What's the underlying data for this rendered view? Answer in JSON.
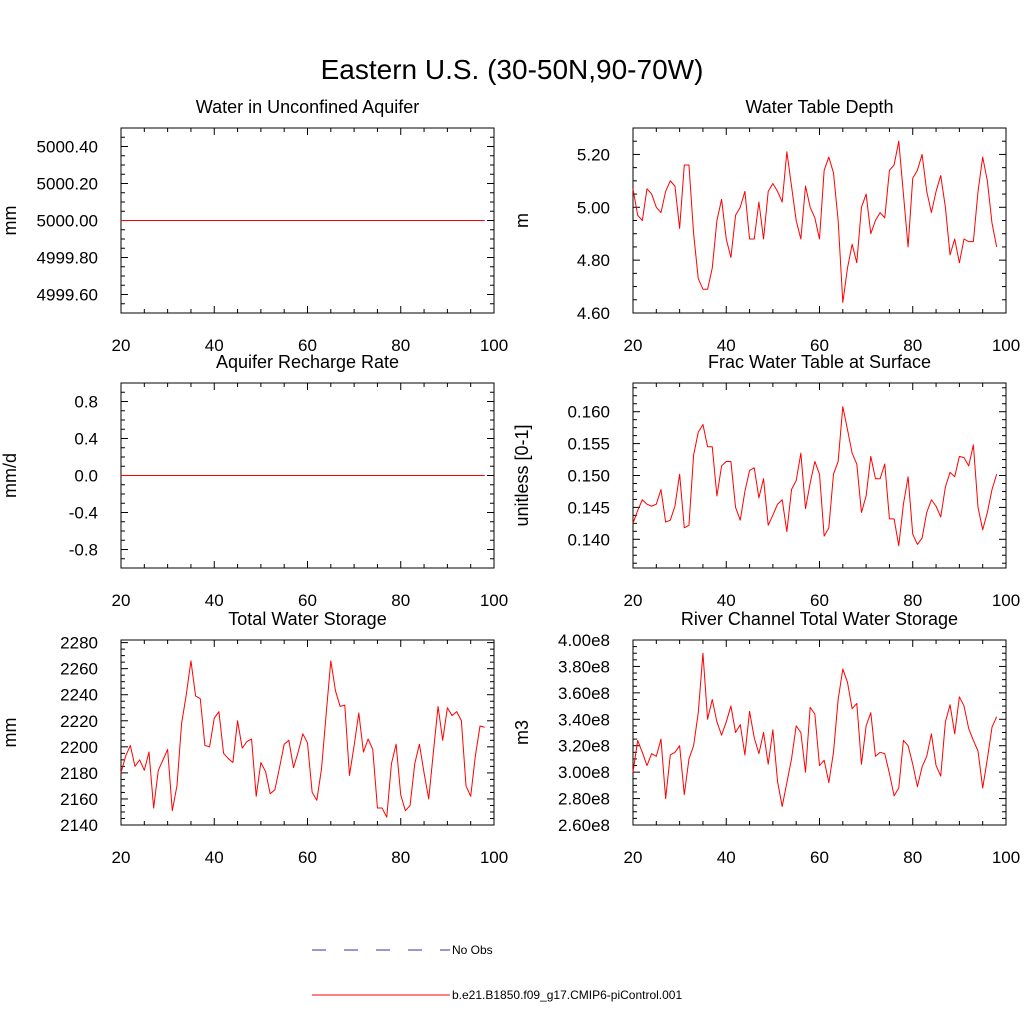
{
  "figure_title": "Eastern U.S. (30-50N,90-70W)",
  "colors": {
    "model": "#ff0000",
    "obs": "#3333aa",
    "axis": "#000000"
  },
  "legend": {
    "obs_label": "No Obs",
    "model_label": "b.e21.B1850.f09_g17.CMIP6-piControl.001"
  },
  "chart_data": [
    {
      "type": "line",
      "title": "Water in Unconfined Aquifer",
      "xlabel": "",
      "ylabel": "mm",
      "xlim": [
        20,
        100
      ],
      "ylim": [
        4999.5,
        5000.5
      ],
      "x_ticks": [
        20,
        40,
        60,
        80,
        100
      ],
      "x_tick_labels": [
        "20",
        "40",
        "60",
        "80",
        "100"
      ],
      "y_ticks": [
        4999.6,
        4999.8,
        5000.0,
        5000.2,
        5000.4
      ],
      "y_tick_labels": [
        "4999.60",
        "4999.80",
        "5000.00",
        "5000.20",
        "5000.40"
      ],
      "series": [
        {
          "name": "b.e21.B1850.f09_g17.CMIP6-piControl.001",
          "x_start": 20,
          "x_step": 2,
          "values": [
            5000,
            5000,
            5000,
            5000,
            5000,
            5000,
            5000,
            5000,
            5000,
            5000,
            5000,
            5000,
            5000,
            5000,
            5000,
            5000,
            5000,
            5000,
            5000,
            5000,
            5000,
            5000,
            5000,
            5000,
            5000,
            5000,
            5000,
            5000,
            5000,
            5000,
            5000,
            5000,
            5000,
            5000,
            5000,
            5000,
            5000,
            5000,
            5000,
            5000
          ]
        }
      ]
    },
    {
      "type": "line",
      "title": "Water Table Depth",
      "xlabel": "",
      "ylabel": "m",
      "xlim": [
        20,
        100
      ],
      "ylim": [
        4.6,
        5.3
      ],
      "x_ticks": [
        20,
        40,
        60,
        80,
        100
      ],
      "x_tick_labels": [
        "20",
        "40",
        "60",
        "80",
        "100"
      ],
      "y_ticks": [
        4.6,
        4.8,
        5.0,
        5.2
      ],
      "y_tick_labels": [
        "4.60",
        "4.80",
        "5.00",
        "5.20"
      ],
      "series": [
        {
          "name": "b.e21.B1850.f09_g17.CMIP6-piControl.001",
          "x_start": 20,
          "x_step": 1,
          "values": [
            5.07,
            4.97,
            4.95,
            5.07,
            5.05,
            5.0,
            4.98,
            5.06,
            5.1,
            5.08,
            4.92,
            5.16,
            5.16,
            4.9,
            4.73,
            4.69,
            4.69,
            4.77,
            4.95,
            5.03,
            4.88,
            4.81,
            4.97,
            5.0,
            5.06,
            4.88,
            4.88,
            5.02,
            4.88,
            5.06,
            5.09,
            5.06,
            5.02,
            5.21,
            5.08,
            4.95,
            4.88,
            5.08,
            5.0,
            4.96,
            4.88,
            5.14,
            5.19,
            5.13,
            4.95,
            4.64,
            4.77,
            4.86,
            4.79,
            5.0,
            5.05,
            4.9,
            4.95,
            4.98,
            4.96,
            5.14,
            5.16,
            5.25,
            5.05,
            4.85,
            5.11,
            5.14,
            5.2,
            5.06,
            4.98,
            5.06,
            5.12,
            5.0,
            4.82,
            4.88,
            4.79,
            4.88,
            4.87,
            4.87,
            5.06,
            5.19,
            5.1,
            4.94,
            4.85
          ]
        }
      ]
    },
    {
      "type": "line",
      "title": "Aquifer Recharge Rate",
      "xlabel": "",
      "ylabel": "mm/d",
      "xlim": [
        20,
        100
      ],
      "ylim": [
        -1.0,
        1.0
      ],
      "x_ticks": [
        20,
        40,
        60,
        80,
        100
      ],
      "x_tick_labels": [
        "20",
        "40",
        "60",
        "80",
        "100"
      ],
      "y_ticks": [
        -0.8,
        -0.4,
        0.0,
        0.4,
        0.8
      ],
      "y_tick_labels": [
        "-0.8",
        "-0.4",
        "0.0",
        "0.4",
        "0.8"
      ],
      "series": [
        {
          "name": "b.e21.B1850.f09_g17.CMIP6-piControl.001",
          "x_start": 20,
          "x_step": 2,
          "values": [
            0,
            0,
            0,
            0,
            0,
            0,
            0,
            0,
            0,
            0,
            0,
            0,
            0,
            0,
            0,
            0,
            0,
            0,
            0,
            0,
            0,
            0,
            0,
            0,
            0,
            0,
            0,
            0,
            0,
            0,
            0,
            0,
            0,
            0,
            0,
            0,
            0,
            0,
            0,
            0
          ]
        }
      ]
    },
    {
      "type": "line",
      "title": "Frac Water Table at Surface",
      "xlabel": "",
      "ylabel": "unitless [0-1]",
      "xlim": [
        20,
        100
      ],
      "ylim": [
        0.1355,
        0.1645
      ],
      "x_ticks": [
        20,
        40,
        60,
        80,
        100
      ],
      "x_tick_labels": [
        "20",
        "40",
        "60",
        "80",
        "100"
      ],
      "y_ticks": [
        0.14,
        0.145,
        0.15,
        0.155,
        0.16
      ],
      "y_tick_labels": [
        "0.140",
        "0.145",
        "0.150",
        "0.155",
        "0.160"
      ],
      "series": [
        {
          "name": "b.e21.B1850.f09_g17.CMIP6-piControl.001",
          "x_start": 20,
          "x_step": 1,
          "values": [
            0.1425,
            0.1445,
            0.1462,
            0.1455,
            0.1452,
            0.1455,
            0.1478,
            0.1427,
            0.143,
            0.1452,
            0.1502,
            0.1418,
            0.1422,
            0.1532,
            0.1568,
            0.158,
            0.1545,
            0.1545,
            0.1468,
            0.1515,
            0.1522,
            0.1522,
            0.145,
            0.143,
            0.1475,
            0.1508,
            0.1512,
            0.1465,
            0.1495,
            0.1422,
            0.1438,
            0.1455,
            0.1462,
            0.1412,
            0.1478,
            0.1492,
            0.1535,
            0.1448,
            0.1488,
            0.1522,
            0.1502,
            0.1405,
            0.1418,
            0.1502,
            0.1522,
            0.1608,
            0.1572,
            0.1535,
            0.1518,
            0.1442,
            0.1468,
            0.153,
            0.1495,
            0.1495,
            0.1518,
            0.1432,
            0.1432,
            0.139,
            0.1455,
            0.1498,
            0.1408,
            0.1392,
            0.1402,
            0.1442,
            0.1462,
            0.1452,
            0.1435,
            0.1482,
            0.1505,
            0.1498,
            0.153,
            0.1528,
            0.1515,
            0.1548,
            0.145,
            0.1415,
            0.1442,
            0.1478,
            0.1502
          ]
        }
      ]
    },
    {
      "type": "line",
      "title": "Total Water Storage",
      "xlabel": "",
      "ylabel": "mm",
      "xlim": [
        20,
        100
      ],
      "ylim": [
        2140,
        2282
      ],
      "x_ticks": [
        20,
        40,
        60,
        80,
        100
      ],
      "x_tick_labels": [
        "20",
        "40",
        "60",
        "80",
        "100"
      ],
      "y_ticks": [
        2140,
        2160,
        2180,
        2200,
        2220,
        2240,
        2260,
        2280
      ],
      "y_tick_labels": [
        "2140",
        "2160",
        "2180",
        "2200",
        "2220",
        "2240",
        "2260",
        "2280"
      ],
      "series": [
        {
          "name": "b.e21.B1850.f09_g17.CMIP6-piControl.001",
          "x_start": 20,
          "x_step": 1,
          "values": [
            2180,
            2193,
            2201,
            2185,
            2190,
            2182,
            2196,
            2153,
            2182,
            2190,
            2198,
            2151,
            2170,
            2218,
            2240,
            2266,
            2239,
            2237,
            2201,
            2200,
            2222,
            2227,
            2195,
            2191,
            2188,
            2220,
            2199,
            2204,
            2206,
            2162,
            2188,
            2181,
            2164,
            2167,
            2184,
            2202,
            2205,
            2184,
            2196,
            2210,
            2203,
            2165,
            2159,
            2183,
            2225,
            2266,
            2243,
            2231,
            2232,
            2178,
            2201,
            2226,
            2196,
            2206,
            2198,
            2153,
            2153,
            2146,
            2187,
            2202,
            2163,
            2151,
            2155,
            2187,
            2202,
            2180,
            2160,
            2196,
            2231,
            2205,
            2230,
            2224,
            2227,
            2220,
            2170,
            2162,
            2193,
            2216,
            2215
          ]
        }
      ]
    },
    {
      "type": "line",
      "title": "River Channel Total Water Storage",
      "xlabel": "",
      "ylabel": "m3",
      "xlim": [
        20,
        100
      ],
      "ylim": [
        260000000.0,
        400000000.0
      ],
      "x_ticks": [
        20,
        40,
        60,
        80,
        100
      ],
      "x_tick_labels": [
        "20",
        "40",
        "60",
        "80",
        "100"
      ],
      "y_ticks": [
        260000000.0,
        280000000.0,
        300000000.0,
        320000000.0,
        340000000.0,
        360000000.0,
        380000000.0,
        400000000.0
      ],
      "y_tick_labels": [
        "2.60e8",
        "2.80e8",
        "3.00e8",
        "3.20e8",
        "3.40e8",
        "3.60e8",
        "3.80e8",
        "4.00e8"
      ],
      "series": [
        {
          "name": "b.e21.B1850.f09_g17.CMIP6-piControl.001",
          "x_start": 20,
          "x_step": 1,
          "values": [
            300000000.0,
            324000000.0,
            315000000.0,
            305000000.0,
            314000000.0,
            312000000.0,
            325000000.0,
            280000000.0,
            313000000.0,
            315000000.0,
            320000000.0,
            283000000.0,
            310000000.0,
            320000000.0,
            345000000.0,
            390000000.0,
            340000000.0,
            355000000.0,
            338000000.0,
            328000000.0,
            338000000.0,
            350000000.0,
            330000000.0,
            336000000.0,
            313000000.0,
            346000000.0,
            326000000.0,
            314000000.0,
            330000000.0,
            306000000.0,
            332000000.0,
            293000000.0,
            274000000.0,
            292000000.0,
            310000000.0,
            335000000.0,
            330000000.0,
            300000000.0,
            349000000.0,
            344000000.0,
            305000000.0,
            309000000.0,
            292000000.0,
            315000000.0,
            355000000.0,
            378000000.0,
            368000000.0,
            348000000.0,
            352000000.0,
            306000000.0,
            335000000.0,
            345000000.0,
            312000000.0,
            315000000.0,
            314000000.0,
            299000000.0,
            282000000.0,
            288000000.0,
            324000000.0,
            320000000.0,
            306000000.0,
            289000000.0,
            304000000.0,
            312000000.0,
            329000000.0,
            305000000.0,
            297000000.0,
            338000000.0,
            351000000.0,
            329000000.0,
            357000000.0,
            350000000.0,
            333000000.0,
            324000000.0,
            316000000.0,
            288000000.0,
            310000000.0,
            334000000.0,
            342000000.0
          ]
        }
      ]
    }
  ]
}
